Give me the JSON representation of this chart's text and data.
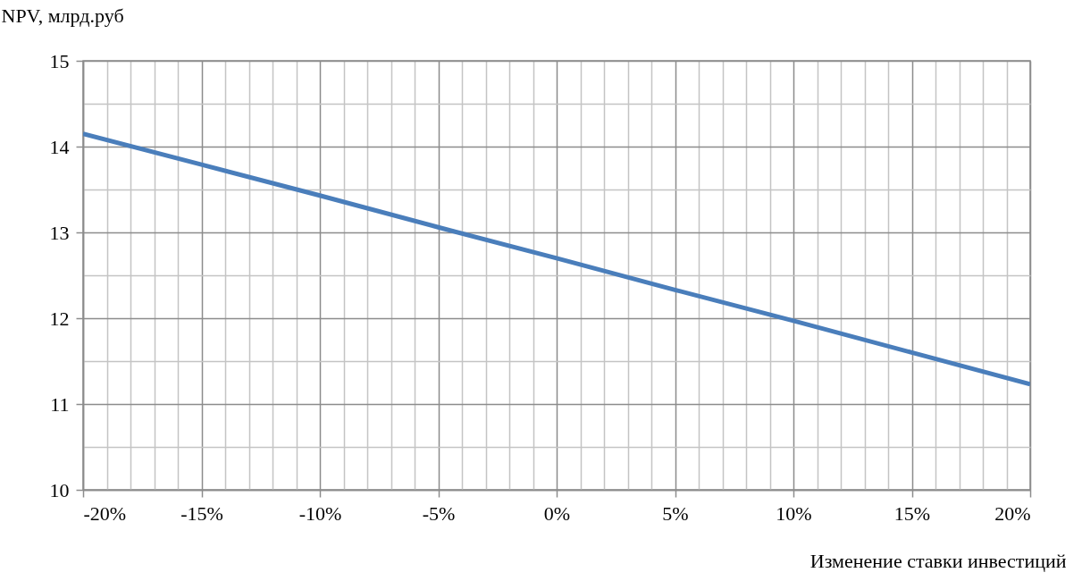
{
  "chart_data": {
    "type": "line",
    "xlabel": "Изменение ставки инвестиций",
    "ylabel": "NPV, млрд.руб",
    "x": [
      -20,
      -15,
      -10,
      -5,
      0,
      5,
      10,
      15,
      20
    ],
    "series": [
      {
        "color": "#4a7ebb",
        "values": [
          14.15,
          13.79,
          13.43,
          13.06,
          12.7,
          12.33,
          11.97,
          11.6,
          11.23
        ]
      }
    ],
    "xlim": [
      -20,
      20
    ],
    "xticks": [
      {
        "value": -20,
        "label": "-20%"
      },
      {
        "value": -19,
        "label": null
      },
      {
        "value": -18,
        "label": null
      },
      {
        "value": -17,
        "label": null
      },
      {
        "value": -16,
        "label": null
      },
      {
        "value": -15,
        "label": "-15%"
      },
      {
        "value": -14,
        "label": null
      },
      {
        "value": -13,
        "label": null
      },
      {
        "value": -12,
        "label": null
      },
      {
        "value": -11,
        "label": null
      },
      {
        "value": -10,
        "label": "-10%"
      },
      {
        "value": -9,
        "label": null
      },
      {
        "value": -8,
        "label": null
      },
      {
        "value": -7,
        "label": null
      },
      {
        "value": -6,
        "label": null
      },
      {
        "value": -5,
        "label": "-5%"
      },
      {
        "value": -4,
        "label": null
      },
      {
        "value": -3,
        "label": null
      },
      {
        "value": -2,
        "label": null
      },
      {
        "value": -1,
        "label": null
      },
      {
        "value": 0,
        "label": "0%"
      },
      {
        "value": 1,
        "label": null
      },
      {
        "value": 2,
        "label": null
      },
      {
        "value": 3,
        "label": null
      },
      {
        "value": 4,
        "label": null
      },
      {
        "value": 5,
        "label": "5%"
      },
      {
        "value": 6,
        "label": null
      },
      {
        "value": 7,
        "label": null
      },
      {
        "value": 8,
        "label": null
      },
      {
        "value": 9,
        "label": null
      },
      {
        "value": 10,
        "label": "10%"
      },
      {
        "value": 11,
        "label": null
      },
      {
        "value": 12,
        "label": null
      },
      {
        "value": 13,
        "label": null
      },
      {
        "value": 14,
        "label": null
      },
      {
        "value": 15,
        "label": "15%"
      },
      {
        "value": 16,
        "label": null
      },
      {
        "value": 17,
        "label": null
      },
      {
        "value": 18,
        "label": null
      },
      {
        "value": 19,
        "label": null
      },
      {
        "value": 20,
        "label": "20%"
      }
    ],
    "ylim": [
      10,
      15
    ],
    "yticks": [
      10,
      {
        "value": 10.5,
        "label": null
      },
      11,
      {
        "value": 11.5,
        "label": null
      },
      12,
      {
        "value": 12.5,
        "label": null
      },
      13,
      {
        "value": 13.5,
        "label": null
      },
      14,
      {
        "value": 14.5,
        "label": null
      },
      15
    ],
    "grid": true,
    "marker": "none",
    "line_style": "solid"
  }
}
